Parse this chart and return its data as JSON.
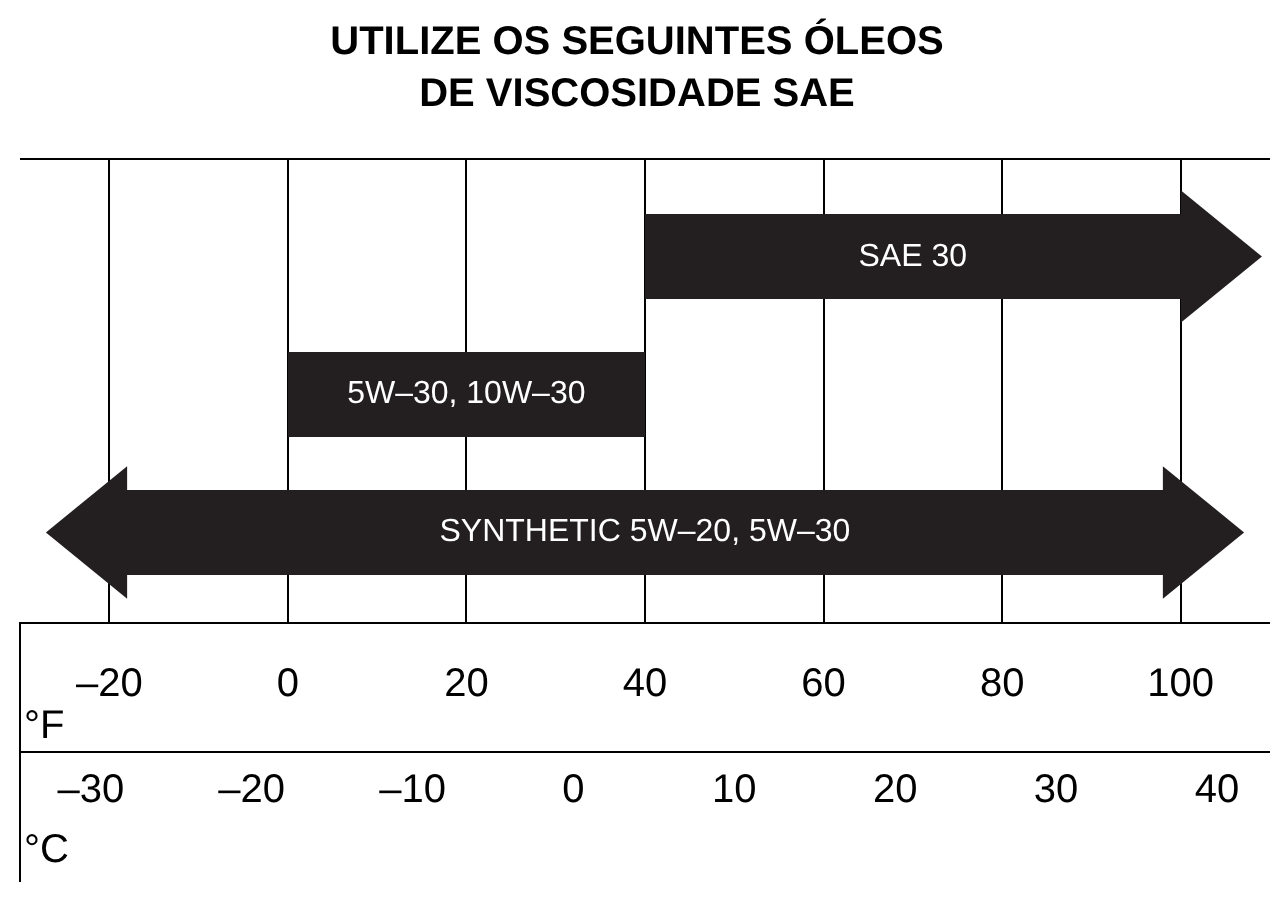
{
  "chart_data": {
    "type": "bar",
    "orientation": "horizontal",
    "title": "UTILIZE OS SEGUINTES ÓLEOS\nDE VISCOSIDADE SAE",
    "categories": [
      "SAE 30",
      "5W–30, 10W–30",
      "SYNTHETIC 5W–20, 5W–30"
    ],
    "base": [
      40,
      0,
      -18
    ],
    "color": "#231f20",
    "values": [
      60,
      40,
      116
    ],
    "xlabel": "°F",
    "x2label": "°C",
    "xlim": [
      -30,
      110
    ],
    "xticks": [
      {
        "value": -20,
        "label": "–20"
      },
      0,
      20,
      40,
      60,
      80,
      100
    ],
    "x2lim": [
      -34.4,
      43.3
    ],
    "x2ticks": [
      {
        "value": -30,
        "label": "–30"
      },
      {
        "value": -20,
        "label": "–20"
      },
      {
        "value": -10,
        "label": "–10"
      },
      0,
      10,
      20,
      30,
      40
    ],
    "grid": "x",
    "tick_labels": "x",
    "legend": false
  }
}
